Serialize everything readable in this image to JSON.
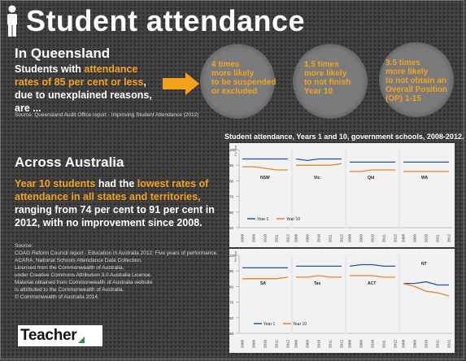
{
  "header": {
    "title": "Student attendance"
  },
  "queensland": {
    "heading": "In Queensland",
    "body": {
      "part1": "Students with ",
      "highlight": "attendance rates of 85 per cent or less",
      "part2": ", due to unexplained reasons, are ..."
    },
    "source": "Source: Queensland Audit Office report - Improving Student Attendance (2012)",
    "circles": [
      {
        "lines": [
          "4 times",
          "more likely",
          "to be suspended",
          "or excluded"
        ]
      },
      {
        "lines": [
          "1.5 times",
          "more likely",
          "to not finish",
          "Year 10"
        ]
      },
      {
        "lines": [
          "3.5 times",
          "more likely",
          "to not obtain an",
          "Overall Position",
          "(OP) 1-15"
        ]
      }
    ]
  },
  "australia": {
    "heading": "Across Australia",
    "body": {
      "hl1": "Year 10 students",
      "t1": " had the ",
      "hl2": "lowest rates of attendance in all states and territories,",
      "t2": " ranging from 74 per cent to 91 per cent in 2012, with no improvement since 2008."
    },
    "source_lines": [
      "Source:",
      "COAG Reform Council report - Education in Australia 2012: Five years of performance.",
      "ACARA, National Schools Attendance Data Collection.",
      "Licensed from the Commonwealth of Australia,",
      "under Creative Commons Attribution 3.0 Australia Licence.",
      "Material obtained from Commonwealth of Australia website",
      "is attributed to the Commonwealth of Australia.",
      "© Commonwealth of Australia 2014."
    ]
  },
  "logo": {
    "text": "Teacher"
  },
  "colors": {
    "orange": "#f5a21b",
    "year1": "#2a56a0",
    "year10": "#e8832a",
    "chart_bg": "#f2f2f2"
  },
  "chart_data": {
    "type": "line",
    "title": "Student attendance, Years 1 and 10, government schools, 2008-2012.",
    "x": [
      "2008",
      "2009",
      "2010",
      "2011",
      "2012"
    ],
    "ylim": [
      50,
      100
    ],
    "yticks": [
      50,
      60,
      70,
      80,
      90,
      100
    ],
    "ylabel": "Per cent",
    "legend": [
      "Year 1",
      "Year 10"
    ],
    "panels": [
      {
        "label": "NSW",
        "row": 0,
        "year1": [
          94,
          94,
          94,
          94,
          94
        ],
        "year10": [
          89,
          89,
          88,
          87,
          87
        ]
      },
      {
        "label": "Vic",
        "row": 0,
        "year1": [
          94,
          93,
          94,
          94,
          94
        ],
        "year10": [
          90,
          90,
          90,
          90,
          91
        ]
      },
      {
        "label": "Qld",
        "row": 0,
        "year1": [
          92,
          92,
          92,
          92,
          92
        ],
        "year10": [
          86,
          86,
          87,
          87,
          87
        ]
      },
      {
        "label": "WA",
        "row": 0,
        "year1": [
          92,
          92,
          92,
          92,
          92
        ],
        "year10": [
          86,
          86,
          86,
          86,
          86
        ]
      },
      {
        "label": "SA",
        "row": 1,
        "year1": [
          92,
          92,
          92,
          92,
          92
        ],
        "year10": [
          85,
          85,
          85,
          85,
          86
        ]
      },
      {
        "label": "Tas",
        "row": 1,
        "year1": [
          93,
          93,
          93,
          93,
          93
        ],
        "year10": [
          86,
          86,
          87,
          86,
          86
        ]
      },
      {
        "label": "ACT",
        "row": 1,
        "year1": [
          93,
          94,
          94,
          93,
          93
        ],
        "year10": [
          87,
          87,
          87,
          86,
          86
        ]
      },
      {
        "label": "NT",
        "row": 1,
        "year1": [
          82,
          82,
          83,
          81,
          81
        ],
        "year10": [
          82,
          80,
          77,
          76,
          74
        ]
      }
    ]
  }
}
